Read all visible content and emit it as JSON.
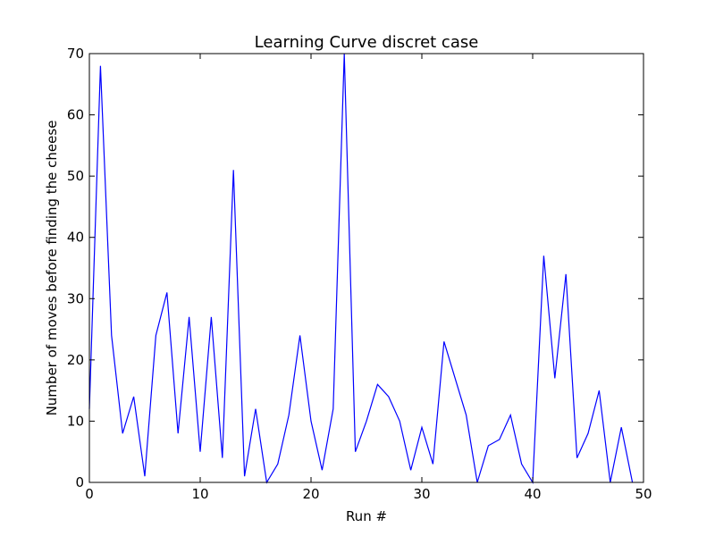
{
  "chart_data": {
    "type": "line",
    "title": "Learning Curve discret case",
    "xlabel": "Run #",
    "ylabel": "Number of moves before finding the cheese",
    "xlim": [
      0,
      50
    ],
    "ylim": [
      0,
      70
    ],
    "xticks": [
      0,
      10,
      20,
      30,
      40,
      50
    ],
    "yticks": [
      0,
      10,
      20,
      30,
      40,
      50,
      60,
      70
    ],
    "grid": false,
    "line_color": "#0000ff",
    "series": [
      {
        "x": [
          0,
          1,
          2,
          3,
          4,
          5,
          6,
          7,
          8,
          9,
          10,
          11,
          12,
          13,
          14,
          15,
          16,
          17,
          18,
          19,
          20,
          21,
          22,
          23,
          24,
          25,
          26,
          27,
          28,
          29,
          30,
          31,
          32,
          33,
          34,
          35,
          36,
          37,
          38,
          39,
          40,
          41,
          42,
          43,
          44,
          45,
          46,
          47,
          48,
          49
        ],
        "values": [
          12,
          68,
          24,
          8,
          14,
          1,
          24,
          31,
          8,
          27,
          5,
          27,
          4,
          51,
          1,
          12,
          0,
          3,
          11,
          24,
          10,
          2,
          12,
          70,
          5,
          10,
          16,
          14,
          10,
          2,
          9,
          3,
          23,
          17,
          11,
          0,
          6,
          7,
          11,
          3,
          0,
          37,
          17,
          34,
          4,
          8,
          15,
          0,
          9,
          0
        ]
      }
    ]
  }
}
